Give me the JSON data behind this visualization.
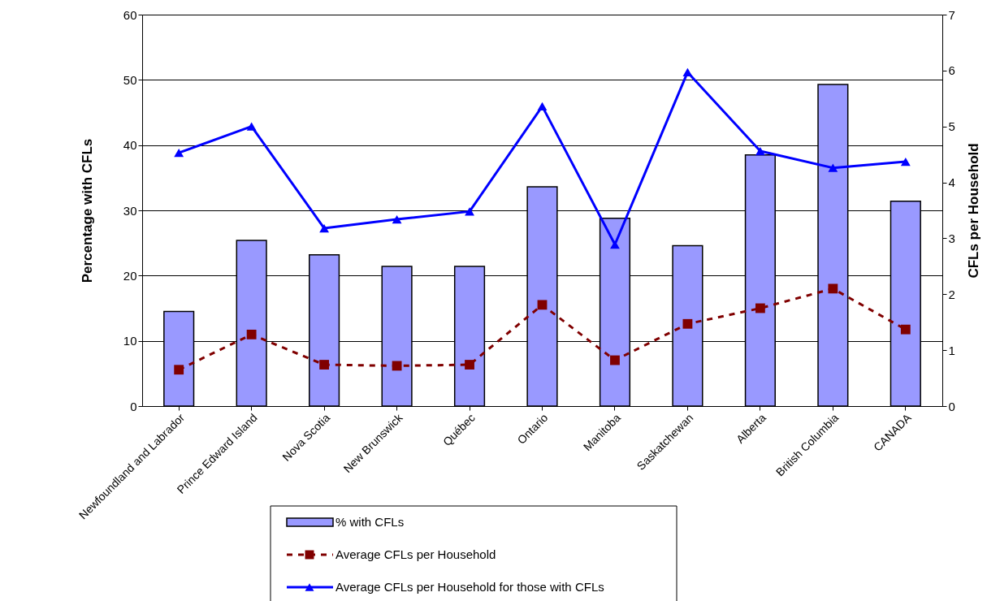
{
  "chart_data": {
    "type": "bar",
    "categories": [
      "Newfoundland and Labrador",
      "Prince Edward Island",
      "Nova Scotia",
      "New Brunswick",
      "Québec",
      "Ontario",
      "Manitoba",
      "Saskatchewan",
      "Alberta",
      "British Columbia",
      "CANADA"
    ],
    "ylabel": "Percentage with CFLs",
    "y2label": "CFLs per Household",
    "ylim": [
      0,
      60
    ],
    "yticks": [
      0,
      10,
      20,
      30,
      40,
      50,
      60
    ],
    "y2lim": [
      0,
      7
    ],
    "y2ticks": [
      0,
      1,
      2,
      3,
      4,
      5,
      6,
      7
    ],
    "grid": "y",
    "legend": "bottom",
    "series": [
      {
        "name": "% with CFLs",
        "color": "#9999ff",
        "values": [
          14.5,
          25.4,
          23.2,
          21.4,
          21.4,
          33.6,
          28.8,
          24.6,
          38.5,
          49.3,
          31.4
        ]
      },
      {
        "name": "Average CFLs per Household",
        "type": "line",
        "axis": "y2",
        "color": "#800000",
        "marker": "square",
        "line_style": "dashed",
        "values": [
          0.65,
          1.28,
          0.74,
          0.72,
          0.74,
          1.81,
          0.82,
          1.47,
          1.75,
          2.1,
          1.37
        ]
      },
      {
        "name": "Average CFLs per Household for those with CFLs",
        "type": "line",
        "axis": "y2",
        "color": "#0000ff",
        "marker": "triangle",
        "line_style": "solid",
        "values": [
          4.53,
          5.0,
          3.18,
          3.34,
          3.48,
          5.36,
          2.89,
          5.97,
          4.56,
          4.26,
          4.37
        ]
      }
    ]
  }
}
